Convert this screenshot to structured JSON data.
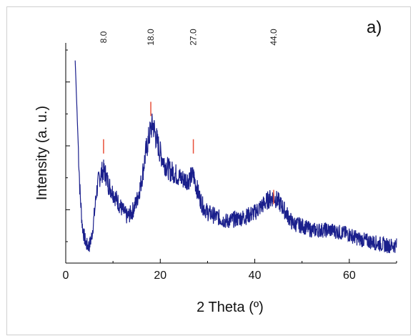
{
  "chart_data": {
    "type": "line",
    "panel_label": "a)",
    "xlabel": "2 Theta (º)",
    "ylabel": "Intensity (a. u.)",
    "xlim": [
      0,
      70
    ],
    "ylim": [
      0,
      1
    ],
    "x_ticks": [
      0,
      20,
      40,
      60
    ],
    "grid": false,
    "legend": "none",
    "line_color": "#1a1f8c",
    "marker_color": "#e8503a",
    "peaks": [
      {
        "label": "8.0",
        "x": 8.0,
        "y_marker": 0.53
      },
      {
        "label": "18.0",
        "x": 18.0,
        "y_marker": 0.7
      },
      {
        "label": "27.0",
        "x": 27.0,
        "y_marker": 0.53
      },
      {
        "label": "44.0",
        "x": 44.0,
        "y_marker": 0.3
      }
    ],
    "series": [
      {
        "x": [
          2,
          2.5,
          3,
          3.5,
          4,
          4.5,
          5,
          5.5,
          6,
          6.5,
          7,
          7.5,
          8,
          8.5,
          9,
          10,
          11,
          12,
          13,
          14,
          15,
          16,
          17,
          18,
          18.5,
          19,
          20,
          21,
          22,
          23,
          24,
          25,
          26,
          27,
          28,
          29,
          30,
          32,
          34,
          36,
          38,
          40,
          42,
          43,
          44,
          45,
          46,
          48,
          50,
          52,
          54,
          56,
          58,
          60,
          62,
          64,
          66,
          68,
          70
        ],
        "y": [
          0.92,
          0.62,
          0.33,
          0.17,
          0.11,
          0.08,
          0.08,
          0.12,
          0.21,
          0.32,
          0.38,
          0.41,
          0.42,
          0.4,
          0.36,
          0.32,
          0.28,
          0.24,
          0.21,
          0.23,
          0.28,
          0.37,
          0.51,
          0.61,
          0.63,
          0.58,
          0.5,
          0.45,
          0.42,
          0.41,
          0.39,
          0.38,
          0.38,
          0.4,
          0.32,
          0.26,
          0.23,
          0.21,
          0.19,
          0.2,
          0.21,
          0.23,
          0.27,
          0.29,
          0.3,
          0.28,
          0.25,
          0.18,
          0.17,
          0.15,
          0.15,
          0.15,
          0.14,
          0.13,
          0.11,
          0.1,
          0.09,
          0.08,
          0.08
        ]
      }
    ]
  }
}
